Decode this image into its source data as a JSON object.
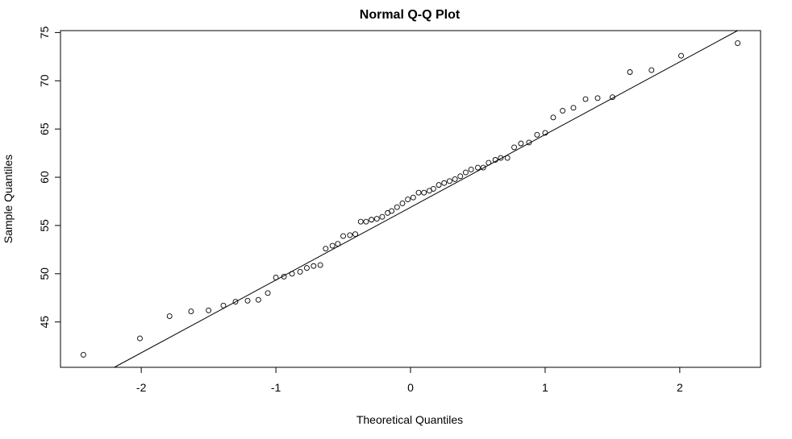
{
  "chart_data": {
    "type": "scatter",
    "title": "Normal Q-Q Plot",
    "xlabel": "Theoretical Quantiles",
    "ylabel": "Sample Quantiles",
    "xlim": [
      -2.6,
      2.6
    ],
    "ylim": [
      40.3,
      75.2
    ],
    "xticks": [
      -2,
      -1,
      0,
      1,
      2
    ],
    "yticks": [
      45,
      50,
      55,
      60,
      65,
      70,
      75
    ],
    "reference_line": {
      "x": [
        -2.2,
        2.43
      ],
      "y": [
        40.3,
        75.2
      ]
    },
    "points": {
      "x": [
        -2.43,
        -2.01,
        -1.79,
        -1.63,
        -1.5,
        -1.39,
        -1.3,
        -1.21,
        -1.13,
        -1.06,
        -1.0,
        -0.94,
        -0.88,
        -0.82,
        -0.77,
        -0.72,
        -0.67,
        -0.63,
        -0.58,
        -0.54,
        -0.5,
        -0.45,
        -0.41,
        -0.37,
        -0.33,
        -0.29,
        -0.25,
        -0.21,
        -0.17,
        -0.14,
        -0.1,
        -0.06,
        -0.02,
        0.02,
        0.06,
        0.1,
        0.14,
        0.17,
        0.21,
        0.25,
        0.29,
        0.33,
        0.37,
        0.41,
        0.45,
        0.5,
        0.54,
        0.58,
        0.63,
        0.67,
        0.72,
        0.77,
        0.82,
        0.88,
        0.94,
        1.0,
        1.06,
        1.13,
        1.21,
        1.3,
        1.39,
        1.5,
        1.63,
        1.79,
        2.01,
        2.43
      ],
      "y": [
        41.6,
        43.3,
        45.6,
        46.1,
        46.2,
        46.7,
        47.1,
        47.2,
        47.3,
        48.0,
        49.6,
        49.7,
        50.0,
        50.2,
        50.6,
        50.8,
        50.9,
        52.6,
        52.9,
        53.1,
        53.9,
        54.0,
        54.1,
        55.4,
        55.4,
        55.6,
        55.7,
        55.9,
        56.3,
        56.5,
        56.9,
        57.3,
        57.7,
        57.9,
        58.4,
        58.4,
        58.6,
        58.8,
        59.2,
        59.4,
        59.6,
        59.8,
        60.1,
        60.5,
        60.8,
        61.0,
        61.0,
        61.5,
        61.8,
        62.0,
        62.0,
        63.1,
        63.5,
        63.6,
        64.4,
        64.6,
        66.2,
        66.9,
        67.2,
        68.1,
        68.2,
        68.3,
        70.9,
        71.1,
        72.6,
        73.9
      ]
    }
  }
}
